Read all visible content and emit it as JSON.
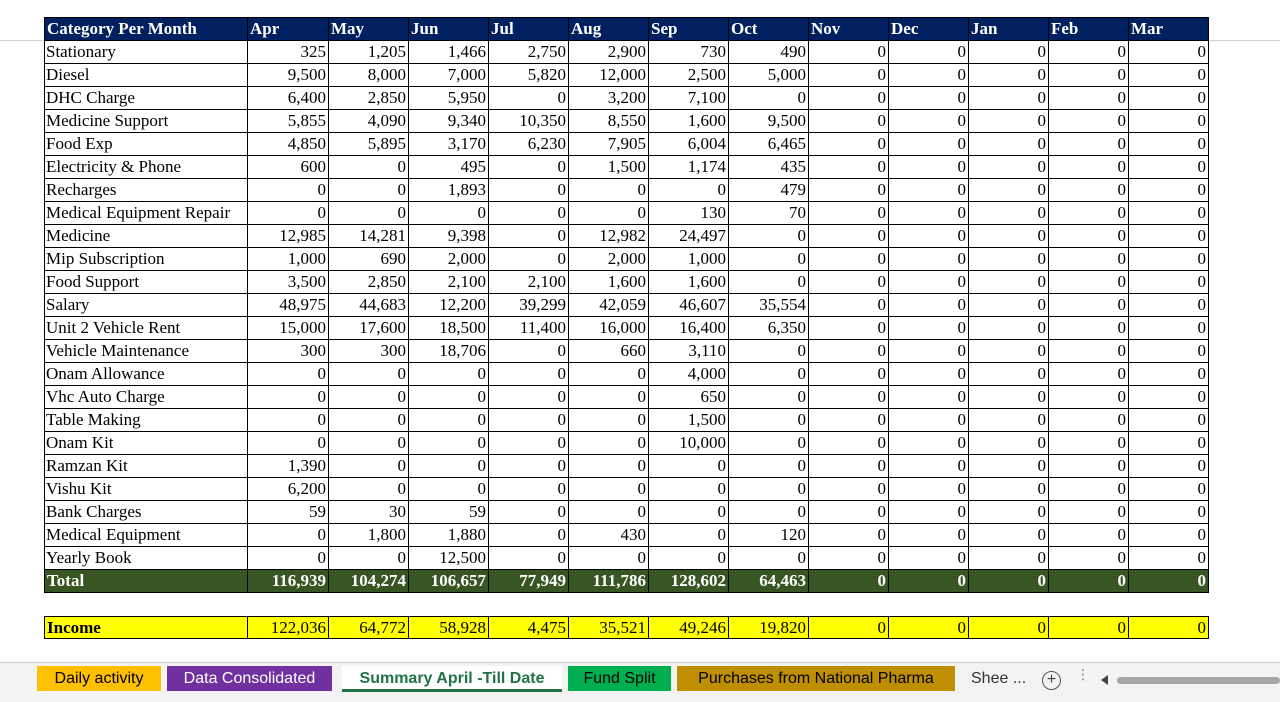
{
  "months": [
    "Apr",
    "May",
    "Jun",
    "Jul",
    "Aug",
    "Sep",
    "Oct",
    "Nov",
    "Dec",
    "Jan",
    "Feb",
    "Mar"
  ],
  "header_label": "Category Per Month",
  "rows": [
    {
      "label": "Stationary",
      "values": [
        "325",
        "1,205",
        "1,466",
        "2,750",
        "2,900",
        "730",
        "490",
        "0",
        "0",
        "0",
        "0",
        "0"
      ]
    },
    {
      "label": "Diesel",
      "values": [
        "9,500",
        "8,000",
        "7,000",
        "5,820",
        "12,000",
        "2,500",
        "5,000",
        "0",
        "0",
        "0",
        "0",
        "0"
      ]
    },
    {
      "label": "DHC Charge",
      "values": [
        "6,400",
        "2,850",
        "5,950",
        "0",
        "3,200",
        "7,100",
        "0",
        "0",
        "0",
        "0",
        "0",
        "0"
      ]
    },
    {
      "label": "Medicine Support",
      "values": [
        "5,855",
        "4,090",
        "9,340",
        "10,350",
        "8,550",
        "1,600",
        "9,500",
        "0",
        "0",
        "0",
        "0",
        "0"
      ]
    },
    {
      "label": "Food Exp",
      "values": [
        "4,850",
        "5,895",
        "3,170",
        "6,230",
        "7,905",
        "6,004",
        "6,465",
        "0",
        "0",
        "0",
        "0",
        "0"
      ]
    },
    {
      "label": "Electricity & Phone",
      "values": [
        "600",
        "0",
        "495",
        "0",
        "1,500",
        "1,174",
        "435",
        "0",
        "0",
        "0",
        "0",
        "0"
      ]
    },
    {
      "label": "Recharges",
      "values": [
        "0",
        "0",
        "1,893",
        "0",
        "0",
        "0",
        "479",
        "0",
        "0",
        "0",
        "0",
        "0"
      ]
    },
    {
      "label": "Medical Equipment Repair",
      "values": [
        "0",
        "0",
        "0",
        "0",
        "0",
        "130",
        "70",
        "0",
        "0",
        "0",
        "0",
        "0"
      ]
    },
    {
      "label": "Medicine",
      "values": [
        "12,985",
        "14,281",
        "9,398",
        "0",
        "12,982",
        "24,497",
        "0",
        "0",
        "0",
        "0",
        "0",
        "0"
      ]
    },
    {
      "label": "Mip Subscription",
      "values": [
        "1,000",
        "690",
        "2,000",
        "0",
        "2,000",
        "1,000",
        "0",
        "0",
        "0",
        "0",
        "0",
        "0"
      ]
    },
    {
      "label": "Food Support",
      "values": [
        "3,500",
        "2,850",
        "2,100",
        "2,100",
        "1,600",
        "1,600",
        "0",
        "0",
        "0",
        "0",
        "0",
        "0"
      ]
    },
    {
      "label": "Salary",
      "values": [
        "48,975",
        "44,683",
        "12,200",
        "39,299",
        "42,059",
        "46,607",
        "35,554",
        "0",
        "0",
        "0",
        "0",
        "0"
      ]
    },
    {
      "label": "Unit 2 Vehicle Rent",
      "values": [
        "15,000",
        "17,600",
        "18,500",
        "11,400",
        "16,000",
        "16,400",
        "6,350",
        "0",
        "0",
        "0",
        "0",
        "0"
      ]
    },
    {
      "label": "Vehicle Maintenance",
      "values": [
        "300",
        "300",
        "18,706",
        "0",
        "660",
        "3,110",
        "0",
        "0",
        "0",
        "0",
        "0",
        "0"
      ]
    },
    {
      "label": "Onam Allowance",
      "values": [
        "0",
        "0",
        "0",
        "0",
        "0",
        "4,000",
        "0",
        "0",
        "0",
        "0",
        "0",
        "0"
      ]
    },
    {
      "label": "Vhc Auto Charge",
      "values": [
        "0",
        "0",
        "0",
        "0",
        "0",
        "650",
        "0",
        "0",
        "0",
        "0",
        "0",
        "0"
      ]
    },
    {
      "label": "Table Making",
      "values": [
        "0",
        "0",
        "0",
        "0",
        "0",
        "1,500",
        "0",
        "0",
        "0",
        "0",
        "0",
        "0"
      ]
    },
    {
      "label": "Onam Kit",
      "values": [
        "0",
        "0",
        "0",
        "0",
        "0",
        "10,000",
        "0",
        "0",
        "0",
        "0",
        "0",
        "0"
      ]
    },
    {
      "label": "Ramzan Kit",
      "values": [
        "1,390",
        "0",
        "0",
        "0",
        "0",
        "0",
        "0",
        "0",
        "0",
        "0",
        "0",
        "0"
      ]
    },
    {
      "label": "Vishu Kit",
      "values": [
        "6,200",
        "0",
        "0",
        "0",
        "0",
        "0",
        "0",
        "0",
        "0",
        "0",
        "0",
        "0"
      ]
    },
    {
      "label": "Bank Charges",
      "values": [
        "59",
        "30",
        "59",
        "0",
        "0",
        "0",
        "0",
        "0",
        "0",
        "0",
        "0",
        "0"
      ]
    },
    {
      "label": "Medical Equipment",
      "values": [
        "0",
        "1,800",
        "1,880",
        "0",
        "430",
        "0",
        "120",
        "0",
        "0",
        "0",
        "0",
        "0"
      ]
    },
    {
      "label": "Yearly Book",
      "values": [
        "0",
        "0",
        "12,500",
        "0",
        "0",
        "0",
        "0",
        "0",
        "0",
        "0",
        "0",
        "0"
      ]
    }
  ],
  "total": {
    "label": "Total",
    "values": [
      "116,939",
      "104,274",
      "106,657",
      "77,949",
      "111,786",
      "128,602",
      "64,463",
      "0",
      "0",
      "0",
      "0",
      "0"
    ]
  },
  "income": {
    "label": "Income",
    "values": [
      "122,036",
      "64,772",
      "58,928",
      "4,475",
      "35,521",
      "49,246",
      "19,820",
      "0",
      "0",
      "0",
      "0",
      "0"
    ]
  },
  "tabs": [
    {
      "label": "Daily activity",
      "bg": "#ffc000",
      "fg": "#000000",
      "active": false
    },
    {
      "label": "Data Consolidated",
      "bg": "#7030a0",
      "fg": "#ffffff",
      "active": false
    },
    {
      "label": "Summary April -Till Date",
      "bg": "#ffffff",
      "fg": "#217346",
      "active": true
    },
    {
      "label": "Fund Split",
      "bg": "#00b050",
      "fg": "#000000",
      "active": false
    },
    {
      "label": "Purchases from National Pharma",
      "bg": "#bf8f00",
      "fg": "#000000",
      "active": false
    }
  ],
  "tab_more_label": "Shee ...",
  "add_sheet_symbol": "+",
  "colors": {
    "header_bg": "#002060",
    "total_bg": "#375623",
    "income_bg": "#ffff00"
  }
}
